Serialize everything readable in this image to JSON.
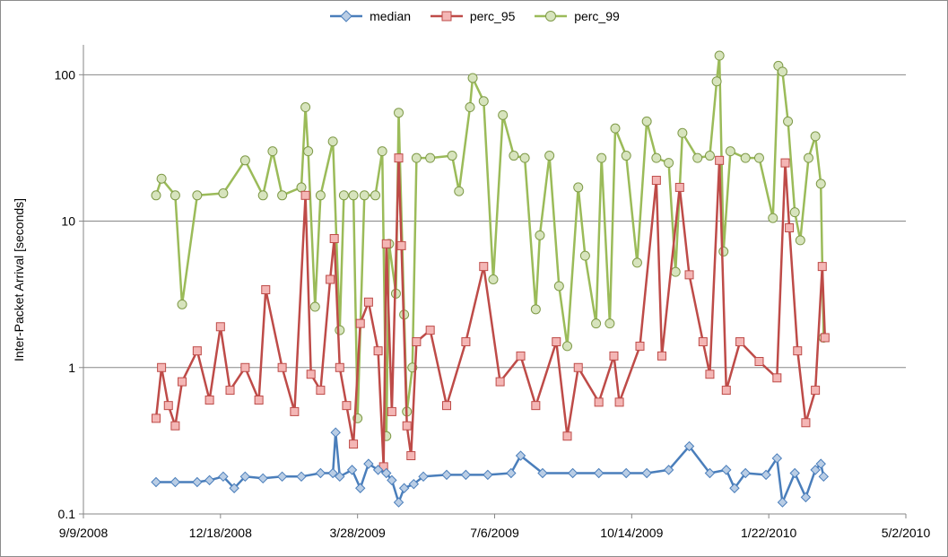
{
  "chart_data": {
    "type": "scatter",
    "ylabel": "Inter-Packet Arrival  [seconds]",
    "xlabel": "",
    "title": "",
    "y_scale": "log",
    "ylim": [
      0.1,
      160
    ],
    "y_ticks": [
      0.1,
      1,
      10,
      100
    ],
    "y_tick_labels": [
      "0.1",
      "1",
      "10",
      "100"
    ],
    "xlim": [
      "2008-09-09",
      "2010-05-02"
    ],
    "x_ticks": [
      "2008-09-09",
      "2008-12-18",
      "2009-03-28",
      "2009-07-06",
      "2009-10-14",
      "2010-01-22",
      "2010-05-02"
    ],
    "x_tick_labels": [
      "9/9/2008",
      "12/18/2008",
      "3/28/2009",
      "7/6/2009",
      "10/14/2009",
      "1/22/2010",
      "5/2/2010"
    ],
    "grid": "horizontal",
    "legend_position": "top",
    "series": [
      {
        "name": "median",
        "color": "#4a7ebb",
        "marker": "diamond",
        "points": [
          [
            "2008-11-01",
            0.165
          ],
          [
            "2008-11-15",
            0.165
          ],
          [
            "2008-12-01",
            0.165
          ],
          [
            "2008-12-10",
            0.17
          ],
          [
            "2008-12-20",
            0.18
          ],
          [
            "2008-12-28",
            0.15
          ],
          [
            "2009-01-05",
            0.18
          ],
          [
            "2009-01-18",
            0.175
          ],
          [
            "2009-02-01",
            0.18
          ],
          [
            "2009-02-15",
            0.18
          ],
          [
            "2009-03-01",
            0.19
          ],
          [
            "2009-03-10",
            0.19
          ],
          [
            "2009-03-12",
            0.36
          ],
          [
            "2009-03-15",
            0.18
          ],
          [
            "2009-03-24",
            0.2
          ],
          [
            "2009-03-30",
            0.15
          ],
          [
            "2009-04-05",
            0.22
          ],
          [
            "2009-04-12",
            0.2
          ],
          [
            "2009-04-18",
            0.19
          ],
          [
            "2009-04-22",
            0.17
          ],
          [
            "2009-04-27",
            0.12
          ],
          [
            "2009-05-01",
            0.15
          ],
          [
            "2009-05-08",
            0.16
          ],
          [
            "2009-05-15",
            0.18
          ],
          [
            "2009-06-01",
            0.185
          ],
          [
            "2009-06-15",
            0.185
          ],
          [
            "2009-07-01",
            0.185
          ],
          [
            "2009-07-18",
            0.19
          ],
          [
            "2009-07-25",
            0.25
          ],
          [
            "2009-08-10",
            0.19
          ],
          [
            "2009-09-01",
            0.19
          ],
          [
            "2009-09-20",
            0.19
          ],
          [
            "2009-10-10",
            0.19
          ],
          [
            "2009-10-25",
            0.19
          ],
          [
            "2009-11-10",
            0.2
          ],
          [
            "2009-11-25",
            0.29
          ],
          [
            "2009-12-10",
            0.19
          ],
          [
            "2009-12-22",
            0.2
          ],
          [
            "2009-12-28",
            0.15
          ],
          [
            "2010-01-05",
            0.19
          ],
          [
            "2010-01-20",
            0.185
          ],
          [
            "2010-01-28",
            0.24
          ],
          [
            "2010-02-01",
            0.12
          ],
          [
            "2010-02-10",
            0.19
          ],
          [
            "2010-02-18",
            0.13
          ],
          [
            "2010-02-25",
            0.2
          ],
          [
            "2010-03-01",
            0.22
          ],
          [
            "2010-03-03",
            0.18
          ]
        ]
      },
      {
        "name": "perc_95",
        "color": "#be4b48",
        "marker": "square",
        "points": [
          [
            "2008-11-01",
            0.45
          ],
          [
            "2008-11-05",
            1.0
          ],
          [
            "2008-11-10",
            0.55
          ],
          [
            "2008-11-15",
            0.4
          ],
          [
            "2008-11-20",
            0.8
          ],
          [
            "2008-12-01",
            1.3
          ],
          [
            "2008-12-10",
            0.6
          ],
          [
            "2008-12-18",
            1.9
          ],
          [
            "2008-12-25",
            0.7
          ],
          [
            "2009-01-05",
            1.0
          ],
          [
            "2009-01-15",
            0.6
          ],
          [
            "2009-01-20",
            3.4
          ],
          [
            "2009-02-01",
            1.0
          ],
          [
            "2009-02-10",
            0.5
          ],
          [
            "2009-02-18",
            15.0
          ],
          [
            "2009-02-22",
            0.9
          ],
          [
            "2009-03-01",
            0.7
          ],
          [
            "2009-03-08",
            4.0
          ],
          [
            "2009-03-11",
            7.6
          ],
          [
            "2009-03-15",
            1.0
          ],
          [
            "2009-03-20",
            0.55
          ],
          [
            "2009-03-25",
            0.3
          ],
          [
            "2009-03-30",
            2.0
          ],
          [
            "2009-04-05",
            2.8
          ],
          [
            "2009-04-12",
            1.3
          ],
          [
            "2009-04-16",
            0.21
          ],
          [
            "2009-04-18",
            7.0
          ],
          [
            "2009-04-22",
            0.5
          ],
          [
            "2009-04-27",
            27.0
          ],
          [
            "2009-04-29",
            6.8
          ],
          [
            "2009-05-03",
            0.4
          ],
          [
            "2009-05-06",
            0.25
          ],
          [
            "2009-05-10",
            1.5
          ],
          [
            "2009-05-20",
            1.8
          ],
          [
            "2009-06-01",
            0.55
          ],
          [
            "2009-06-15",
            1.5
          ],
          [
            "2009-06-28",
            4.9
          ],
          [
            "2009-07-10",
            0.8
          ],
          [
            "2009-07-25",
            1.2
          ],
          [
            "2009-08-05",
            0.55
          ],
          [
            "2009-08-20",
            1.5
          ],
          [
            "2009-08-28",
            0.34
          ],
          [
            "2009-09-05",
            1.0
          ],
          [
            "2009-09-20",
            0.58
          ],
          [
            "2009-10-01",
            1.2
          ],
          [
            "2009-10-05",
            0.58
          ],
          [
            "2009-10-20",
            1.4
          ],
          [
            "2009-11-01",
            19.0
          ],
          [
            "2009-11-05",
            1.2
          ],
          [
            "2009-11-18",
            17.0
          ],
          [
            "2009-11-25",
            4.3
          ],
          [
            "2009-12-05",
            1.5
          ],
          [
            "2009-12-10",
            0.9
          ],
          [
            "2009-12-17",
            26.0
          ],
          [
            "2009-12-22",
            0.7
          ],
          [
            "2010-01-01",
            1.5
          ],
          [
            "2010-01-15",
            1.1
          ],
          [
            "2010-01-28",
            0.85
          ],
          [
            "2010-02-03",
            25.0
          ],
          [
            "2010-02-06",
            9.0
          ],
          [
            "2010-02-12",
            1.3
          ],
          [
            "2010-02-18",
            0.42
          ],
          [
            "2010-02-25",
            0.7
          ],
          [
            "2010-03-02",
            4.9
          ],
          [
            "2010-03-04",
            1.6
          ]
        ]
      },
      {
        "name": "perc_99",
        "color": "#9bbb59",
        "marker": "circle",
        "points": [
          [
            "2008-11-01",
            15.0
          ],
          [
            "2008-11-05",
            19.5
          ],
          [
            "2008-11-15",
            15.0
          ],
          [
            "2008-11-20",
            2.7
          ],
          [
            "2008-12-01",
            15.0
          ],
          [
            "2008-12-20",
            15.5
          ],
          [
            "2009-01-05",
            26.0
          ],
          [
            "2009-01-18",
            15.0
          ],
          [
            "2009-01-25",
            30.0
          ],
          [
            "2009-02-01",
            15.0
          ],
          [
            "2009-02-15",
            17.0
          ],
          [
            "2009-02-18",
            60.0
          ],
          [
            "2009-02-20",
            30.0
          ],
          [
            "2009-02-25",
            2.6
          ],
          [
            "2009-03-01",
            15.0
          ],
          [
            "2009-03-10",
            35.0
          ],
          [
            "2009-03-15",
            1.8
          ],
          [
            "2009-03-18",
            15.0
          ],
          [
            "2009-03-25",
            15.0
          ],
          [
            "2009-03-28",
            0.45
          ],
          [
            "2009-04-02",
            15.0
          ],
          [
            "2009-04-10",
            15.0
          ],
          [
            "2009-04-15",
            30.0
          ],
          [
            "2009-04-18",
            0.34
          ],
          [
            "2009-04-20",
            7.0
          ],
          [
            "2009-04-25",
            3.2
          ],
          [
            "2009-04-27",
            55.0
          ],
          [
            "2009-05-01",
            2.3
          ],
          [
            "2009-05-03",
            0.5
          ],
          [
            "2009-05-07",
            1.0
          ],
          [
            "2009-05-10",
            27.0
          ],
          [
            "2009-05-20",
            27.0
          ],
          [
            "2009-06-05",
            28.0
          ],
          [
            "2009-06-10",
            16.0
          ],
          [
            "2009-06-18",
            60.0
          ],
          [
            "2009-06-20",
            95.0
          ],
          [
            "2009-06-28",
            66.0
          ],
          [
            "2009-07-05",
            4.0
          ],
          [
            "2009-07-12",
            53.0
          ],
          [
            "2009-07-20",
            28.0
          ],
          [
            "2009-07-28",
            27.0
          ],
          [
            "2009-08-05",
            2.5
          ],
          [
            "2009-08-08",
            8.0
          ],
          [
            "2009-08-15",
            28.0
          ],
          [
            "2009-08-22",
            3.6
          ],
          [
            "2009-08-28",
            1.4
          ],
          [
            "2009-09-05",
            17.0
          ],
          [
            "2009-09-10",
            5.8
          ],
          [
            "2009-09-18",
            2.0
          ],
          [
            "2009-09-22",
            27.0
          ],
          [
            "2009-09-28",
            2.0
          ],
          [
            "2009-10-02",
            43.0
          ],
          [
            "2009-10-10",
            28.0
          ],
          [
            "2009-10-18",
            5.2
          ],
          [
            "2009-10-25",
            48.0
          ],
          [
            "2009-11-01",
            27.0
          ],
          [
            "2009-11-10",
            25.0
          ],
          [
            "2009-11-15",
            4.5
          ],
          [
            "2009-11-20",
            40.0
          ],
          [
            "2009-12-01",
            27.0
          ],
          [
            "2009-12-10",
            28.0
          ],
          [
            "2009-12-15",
            90.0
          ],
          [
            "2009-12-17",
            135.0
          ],
          [
            "2009-12-20",
            6.2
          ],
          [
            "2009-12-25",
            30.0
          ],
          [
            "2010-01-05",
            27.0
          ],
          [
            "2010-01-15",
            27.0
          ],
          [
            "2010-01-25",
            10.5
          ],
          [
            "2010-01-29",
            115.0
          ],
          [
            "2010-02-01",
            105.0
          ],
          [
            "2010-02-05",
            48.0
          ],
          [
            "2010-02-10",
            11.5
          ],
          [
            "2010-02-14",
            7.4
          ],
          [
            "2010-02-20",
            27.0
          ],
          [
            "2010-02-25",
            38.0
          ],
          [
            "2010-03-01",
            18.0
          ],
          [
            "2010-03-03",
            1.6
          ]
        ]
      }
    ]
  }
}
